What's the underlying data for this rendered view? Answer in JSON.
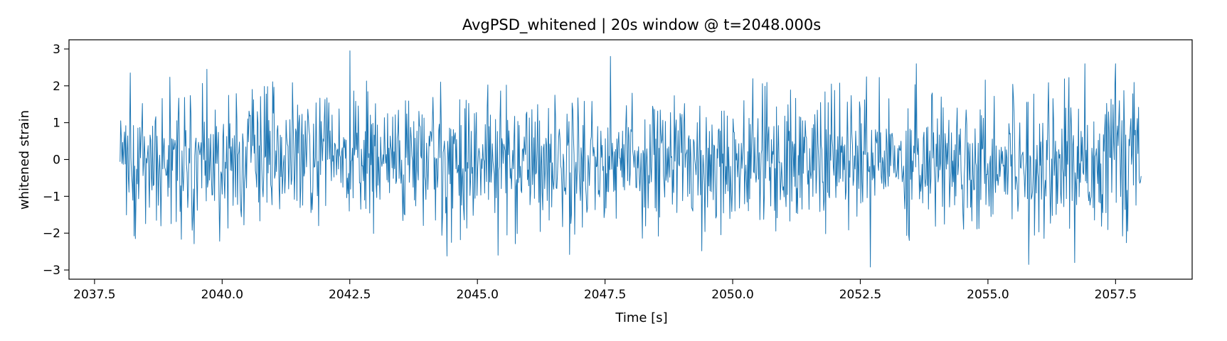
{
  "chart_data": {
    "type": "line",
    "title": "AvgPSD_whitened | 20s window @ t=2048.000s",
    "xlabel": "Time [s]",
    "ylabel": "whitened strain",
    "xlim": [
      2037.0,
      2059.0
    ],
    "ylim": [
      -3.25,
      3.25
    ],
    "xticks": [
      2037.5,
      2040.0,
      2042.5,
      2045.0,
      2047.5,
      2050.0,
      2052.5,
      2055.0,
      2057.5
    ],
    "xtick_labels": [
      "2037.5",
      "2040.0",
      "2042.5",
      "2045.0",
      "2047.5",
      "2050.0",
      "2052.5",
      "2055.0",
      "2057.5"
    ],
    "yticks": [
      3,
      2,
      1,
      0,
      -1,
      -2,
      -3
    ],
    "ytick_labels": [
      "3",
      "2",
      "1",
      "0",
      "−1",
      "−2",
      "−3"
    ],
    "grid": false,
    "legend": "none",
    "series": [
      {
        "color": "#1f77b4",
        "x_start": 2038.0,
        "x_end": 2058.0,
        "sample_count": 1600,
        "std": 0.9,
        "peaks": [
          {
            "x": 2038.2,
            "y": 2.35
          },
          {
            "x": 2039.7,
            "y": 2.45
          },
          {
            "x": 2042.5,
            "y": 2.95
          },
          {
            "x": 2044.4,
            "y": -2.62
          },
          {
            "x": 2045.4,
            "y": -2.6
          },
          {
            "x": 2046.8,
            "y": -2.58
          },
          {
            "x": 2047.6,
            "y": 2.8
          },
          {
            "x": 2049.4,
            "y": -2.48
          },
          {
            "x": 2052.7,
            "y": -2.92
          },
          {
            "x": 2053.6,
            "y": 2.6
          },
          {
            "x": 2055.8,
            "y": -2.85
          },
          {
            "x": 2056.7,
            "y": -2.8
          },
          {
            "x": 2056.9,
            "y": 2.6
          },
          {
            "x": 2057.5,
            "y": 2.6
          }
        ]
      }
    ]
  }
}
